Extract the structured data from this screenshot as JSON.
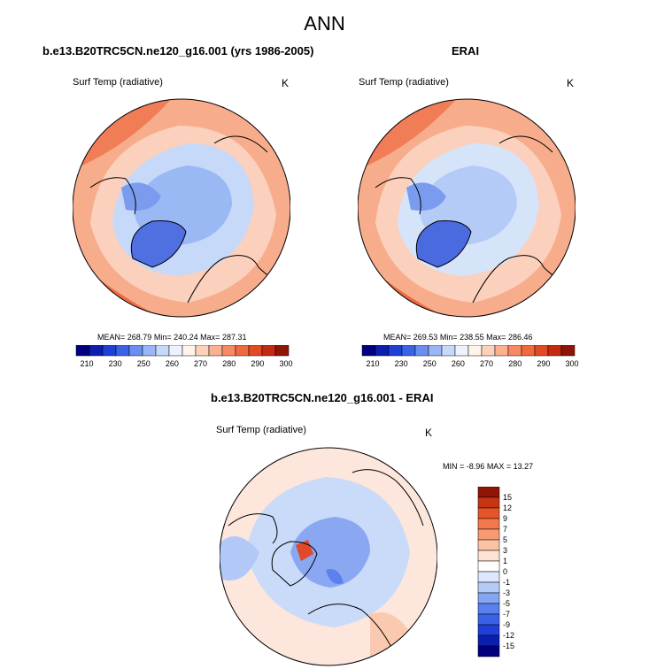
{
  "page": {
    "title": "ANN"
  },
  "colors": {
    "abs_palette": [
      "#000080",
      "#0a1fb0",
      "#1f3fd8",
      "#3a62e8",
      "#6a8ff0",
      "#9ab6f6",
      "#c6d9fb",
      "#ecf3ff",
      "#fff3ea",
      "#fdd2bb",
      "#fbb092",
      "#f78a64",
      "#f06a3e",
      "#e24a22",
      "#c52a10",
      "#8f1505"
    ],
    "diff_palette": [
      "#000080",
      "#0a1fb0",
      "#1f3fd8",
      "#3a62e8",
      "#5a80ee",
      "#86a5f3",
      "#b4cbf8",
      "#dde8fd",
      "#ffffff",
      "#fde3d5",
      "#fbc2a4",
      "#f89b74",
      "#f3784c",
      "#e6542a",
      "#c73412",
      "#8f1505"
    ],
    "land_line": "#000000"
  },
  "chart_data": [
    {
      "type": "heatmap",
      "projection": "polar-stereographic-north",
      "title": "b.e13.B20TRC5CN.ne120_g16.001 (yrs 1986-2005)",
      "variable": "Surf Temp (radiative)",
      "units": "K",
      "mean_label": "MEAN=",
      "mean": "268.79",
      "min_label": "Min=",
      "min": "240.24",
      "max_label": "Max=",
      "max": "287.31",
      "colorbar_levels": [
        210,
        220,
        230,
        240,
        250,
        255,
        260,
        265,
        270,
        275,
        280,
        285,
        290,
        295,
        300
      ],
      "colorbar_tick_labels": [
        "210",
        "230",
        "250",
        "260",
        "270",
        "280",
        "290",
        "300"
      ]
    },
    {
      "type": "heatmap",
      "projection": "polar-stereographic-north",
      "title": "ERAI",
      "variable": "Surf Temp (radiative)",
      "units": "K",
      "mean_label": "MEAN=",
      "mean": "269.53",
      "min_label": "Min=",
      "min": "238.55",
      "max_label": "Max=",
      "max": "286.46",
      "colorbar_levels": [
        210,
        220,
        230,
        240,
        250,
        255,
        260,
        265,
        270,
        275,
        280,
        285,
        290,
        295,
        300
      ],
      "colorbar_tick_labels": [
        "210",
        "230",
        "250",
        "260",
        "270",
        "280",
        "290",
        "300"
      ]
    },
    {
      "type": "heatmap",
      "projection": "polar-stereographic-north",
      "title": "b.e13.B20TRC5CN.ne120_g16.001 - ERAI",
      "variable": "Surf Temp (radiative)",
      "units": "K",
      "min_label": "MIN =",
      "min": "-8.96",
      "max_label": "MAX =",
      "max": "13.27",
      "colorbar_tick_labels": [
        "15",
        "12",
        "9",
        "7",
        "5",
        "3",
        "1",
        "0",
        "-1",
        "-3",
        "-5",
        "-7",
        "-9",
        "-12",
        "-15"
      ]
    }
  ]
}
